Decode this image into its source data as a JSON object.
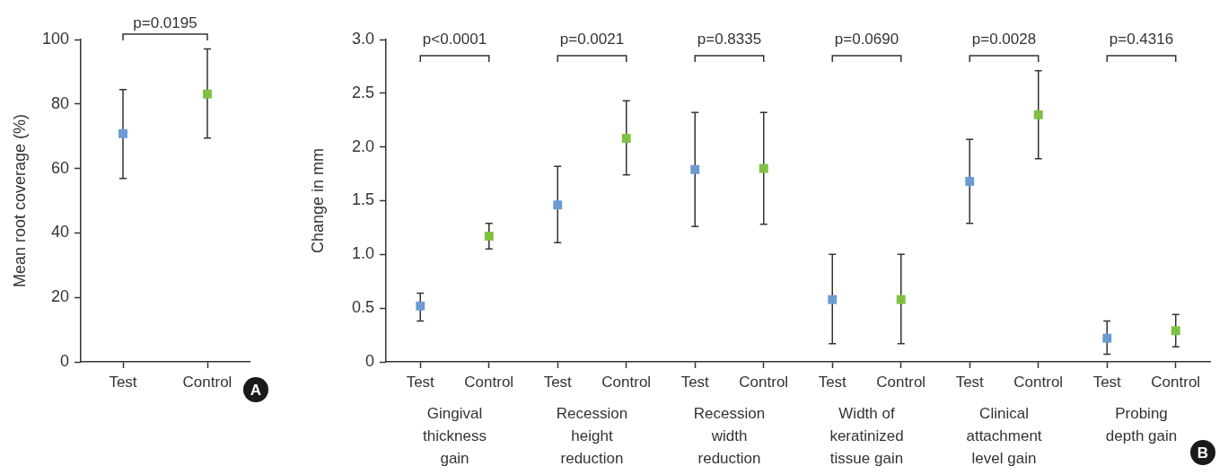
{
  "chart_data": [
    {
      "type": "scatter",
      "title": "A",
      "ylabel": "Mean root coverage (%)",
      "categories": [
        "Test",
        "Control"
      ],
      "values": [
        70.8,
        83.1
      ],
      "colors": [
        "#6b9bd2",
        "#7dc142"
      ],
      "errors": [
        [
          56.9,
          84.5
        ],
        [
          69.4,
          97.1
        ]
      ],
      "ylim": [
        0,
        100
      ],
      "yticks": [
        0,
        20,
        40,
        60,
        80,
        100
      ],
      "grid": false,
      "marker": "square",
      "annotations": [
        "p=0.0195"
      ]
    },
    {
      "type": "scatter",
      "title": "B",
      "ylabel": "Change in mm",
      "categories": [
        "Test",
        "Control",
        "Test",
        "Control",
        "Test",
        "Control",
        "Test",
        "Control",
        "Test",
        "Control",
        "Test",
        "Control"
      ],
      "values": [
        0.52,
        1.17,
        1.46,
        2.08,
        1.79,
        1.8,
        0.58,
        0.58,
        1.68,
        2.3,
        0.22,
        0.29
      ],
      "colors": [
        "#6b9bd2",
        "#7dc142",
        "#6b9bd2",
        "#7dc142",
        "#6b9bd2",
        "#7dc142",
        "#6b9bd2",
        "#7dc142",
        "#6b9bd2",
        "#7dc142",
        "#6b9bd2",
        "#7dc142"
      ],
      "errors": [
        [
          0.38,
          0.64
        ],
        [
          1.05,
          1.29
        ],
        [
          1.11,
          1.82
        ],
        [
          1.74,
          2.43
        ],
        [
          1.26,
          2.32
        ],
        [
          1.28,
          2.32
        ],
        [
          0.17,
          1.0
        ],
        [
          0.17,
          1.0
        ],
        [
          1.29,
          2.07
        ],
        [
          1.89,
          2.71
        ],
        [
          0.07,
          0.38
        ],
        [
          0.14,
          0.44
        ]
      ],
      "ylim": [
        0,
        3
      ],
      "yticks": [
        {
          "value": 0,
          "label": "0"
        },
        {
          "value": 0.5,
          "label": "0.5"
        },
        {
          "value": 1,
          "label": "1.0"
        },
        {
          "value": 1.5,
          "label": "1.5"
        },
        {
          "value": 2,
          "label": "2.0"
        },
        {
          "value": 2.5,
          "label": "2.5"
        },
        {
          "value": 3,
          "label": "3.0"
        }
      ],
      "grid": false,
      "marker": "square",
      "annotations": [
        "p<0.0001",
        "p=0.0021",
        "p=0.8335",
        "p=0.0690",
        "p=0.0028",
        "p=0.4316",
        "Gingival thickness gain",
        "Recession height reduction",
        "Recession width reduction",
        "Width of keratinized tissue gain",
        "Clinical attachment level gain",
        "Probing depth gain"
      ]
    }
  ]
}
